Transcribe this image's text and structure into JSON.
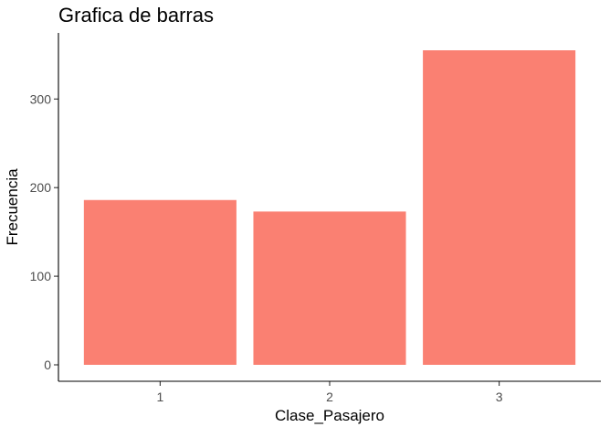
{
  "chart_data": {
    "type": "bar",
    "title": "Grafica de barras",
    "xlabel": "Clase_Pasajero",
    "ylabel": "Frecuencia",
    "categories": [
      "1",
      "2",
      "3"
    ],
    "values": [
      186,
      173,
      355
    ],
    "ylim": [
      0,
      372
    ],
    "yticks": [
      0,
      100,
      200,
      300
    ],
    "grid": false,
    "legend": "none",
    "bar_color": "#FA8072"
  }
}
